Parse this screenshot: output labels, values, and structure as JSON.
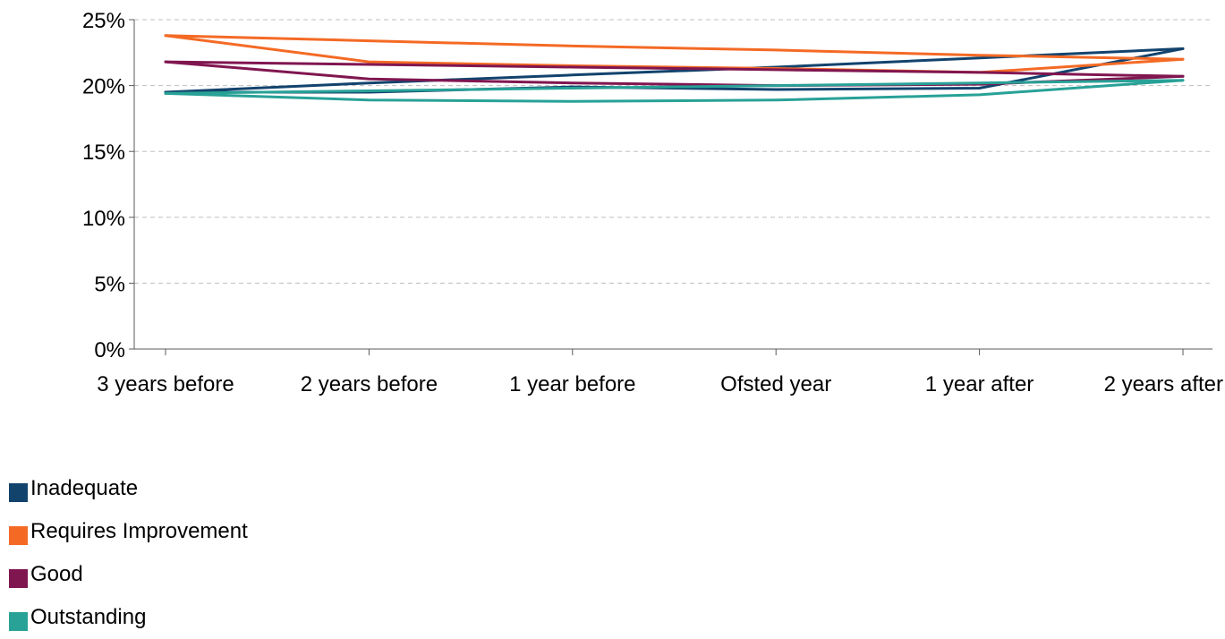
{
  "chart_data": {
    "type": "line",
    "title": "",
    "xlabel": "",
    "ylabel": "",
    "categories": [
      "3 years before",
      "2 years before",
      "1 year before",
      "Ofsted year",
      "1 year after",
      "2 years after"
    ],
    "y_ticks": [
      "0%",
      "5%",
      "10%",
      "15%",
      "20%",
      "25%"
    ],
    "ylim": [
      0,
      25
    ],
    "grid": true,
    "legend_position": "bottom-left",
    "series": [
      {
        "name": "Inadequate",
        "color": "#12436D",
        "values": [
          19.5,
          19.5,
          19.9,
          19.7,
          19.8,
          22.8
        ]
      },
      {
        "name": "Inadequate",
        "color": "#12436D",
        "values": [
          19.5,
          20.2,
          20.8,
          21.4,
          22.1,
          22.8
        ]
      },
      {
        "name": "Requires Improvement",
        "color": "#F46A25",
        "values": [
          23.8,
          21.8,
          21.5,
          21.3,
          21.0,
          22.0
        ]
      },
      {
        "name": "Requires Improvement",
        "color": "#F46A25",
        "values": [
          23.8,
          23.4,
          23.0,
          22.7,
          22.3,
          22.0
        ]
      },
      {
        "name": "Good",
        "color": "#801650",
        "values": [
          21.8,
          20.5,
          20.2,
          20.0,
          20.1,
          20.7
        ]
      },
      {
        "name": "Good",
        "color": "#801650",
        "values": [
          21.8,
          21.6,
          21.4,
          21.2,
          21.0,
          20.7
        ]
      },
      {
        "name": "Outstanding",
        "color": "#28A197",
        "values": [
          19.4,
          18.9,
          18.8,
          18.9,
          19.3,
          20.4
        ]
      },
      {
        "name": "Outstanding",
        "color": "#28A197",
        "values": [
          19.4,
          19.6,
          19.8,
          20.0,
          20.2,
          20.4
        ]
      }
    ],
    "legend": [
      {
        "label": "Inadequate",
        "color": "#12436D"
      },
      {
        "label": "Requires Improvement",
        "color": "#F46A25"
      },
      {
        "label": "Good",
        "color": "#801650"
      },
      {
        "label": "Outstanding",
        "color": "#28A197"
      }
    ]
  }
}
